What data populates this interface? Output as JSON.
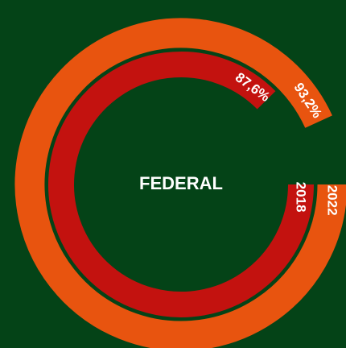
{
  "chart_data": {
    "type": "radial_bar",
    "categories": [
      "FEDERAL"
    ],
    "ylim": [
      0,
      100
    ],
    "series": [
      {
        "name": "2018",
        "color": "#c3120f",
        "values": [
          87.6
        ],
        "value_labels": [
          "87,6%"
        ]
      },
      {
        "name": "2022",
        "color": "#e8540f",
        "values": [
          93.2
        ],
        "value_labels": [
          "93,2%"
        ]
      }
    ]
  }
}
